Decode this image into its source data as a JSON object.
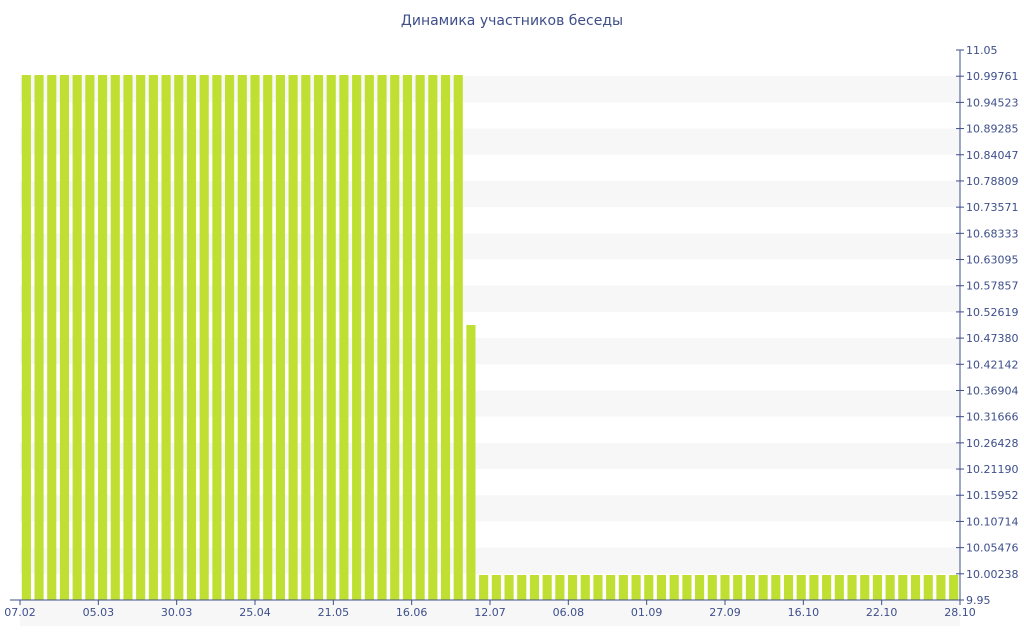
{
  "chart_data": {
    "type": "bar",
    "title": "Динамика участников беседы",
    "xlabel": "",
    "ylabel": "",
    "ylim": [
      9.95,
      11.05
    ],
    "y_tick_labels": [
      "11.05",
      "10.99761",
      "10.94523",
      "10.89285",
      "10.84047",
      "10.78809",
      "10.73571",
      "10.68333",
      "10.63095",
      "10.57857",
      "10.52619",
      "10.47380",
      "10.42142",
      "10.36904",
      "10.31666",
      "10.26428",
      "10.21190",
      "10.15952",
      "10.10714",
      "10.05476",
      "10.00238",
      "9.95"
    ],
    "x_tick_labels": [
      "07.02",
      "05.03",
      "30.03",
      "25.04",
      "21.05",
      "16.06",
      "12.07",
      "06.08",
      "01.09",
      "27.09",
      "16.10",
      "22.10",
      "28.10"
    ],
    "grid": true,
    "bar_color": "#bfe033",
    "band_color": "#f7f7f7",
    "axis_color": "#3e4f8b",
    "values": [
      11,
      11,
      11,
      11,
      11,
      11,
      11,
      11,
      11,
      11,
      11,
      11,
      11,
      11,
      11,
      11,
      11,
      11,
      11,
      11,
      11,
      11,
      11,
      11,
      11,
      11,
      11,
      11,
      11,
      11,
      11,
      11,
      11,
      11,
      11,
      10.5,
      10,
      10,
      10,
      10,
      10,
      10,
      10,
      10,
      10,
      10,
      10,
      10,
      10,
      10,
      10,
      10,
      10,
      10,
      10,
      10,
      10,
      10,
      10,
      10,
      10,
      10,
      10,
      10,
      10,
      10,
      10,
      10,
      10,
      10,
      10,
      10,
      10,
      10
    ]
  }
}
